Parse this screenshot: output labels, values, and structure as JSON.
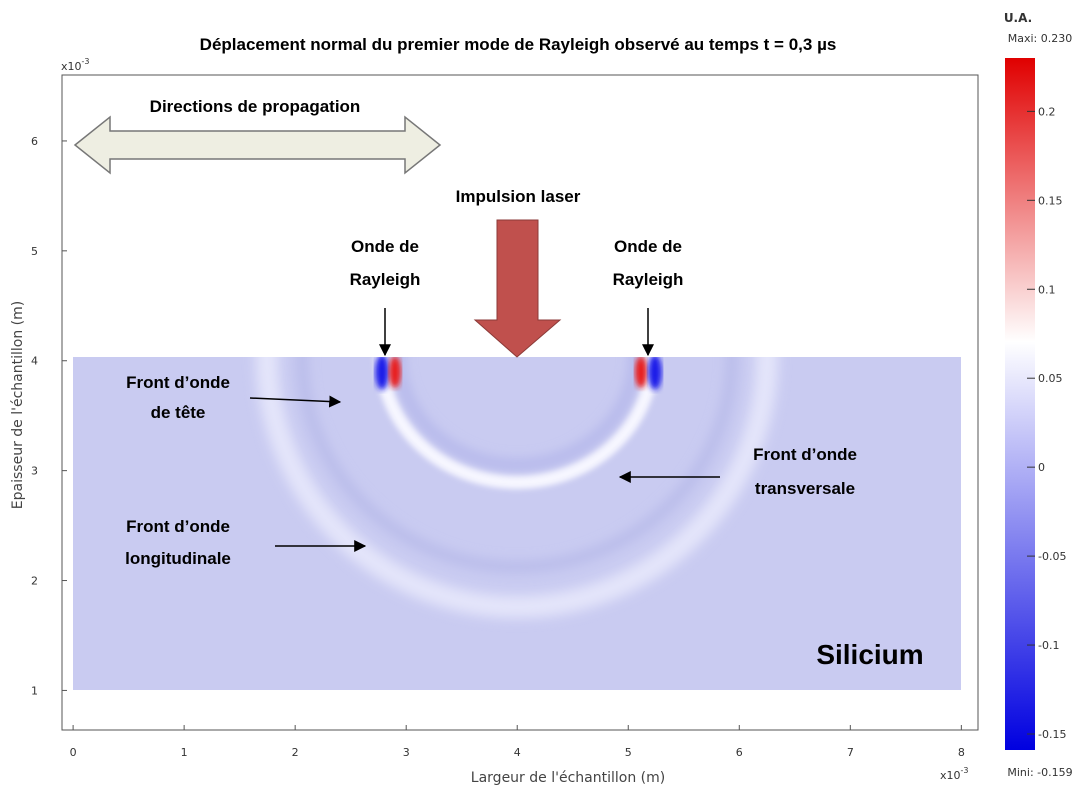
{
  "chart_data": {
    "type": "field",
    "title": "Déplacement normal du premier mode de Rayleigh observé au temps t = 0,3 µs",
    "xlabel": "Largeur de l'échantillon (m)",
    "ylabel": "Epaisseur de l'échantillon (m)",
    "xlim": [
      -0.1,
      8.15
    ],
    "xticks": [
      0,
      1,
      2,
      3,
      4,
      5,
      6,
      7,
      8
    ],
    "ylim": [
      0.64,
      6.6
    ],
    "yticks": [
      1,
      2,
      3,
      4,
      5,
      6
    ],
    "x_multiplier": {
      "base": "x10",
      "exp": "-3"
    },
    "y_multiplier": {
      "base": "x10",
      "exp": "-3"
    },
    "colorbar": {
      "label": "U.A.",
      "max_label": "Maxi: 0.230",
      "min_label": "Mini: -0.159",
      "clim": [
        -0.159,
        0.23
      ],
      "ticks": [
        -0.15,
        -0.1,
        -0.05,
        0,
        0.05,
        0.1,
        0.15,
        0.2
      ]
    },
    "annotations": {
      "propagation": "Directions de propagation",
      "laser": "Impulsion laser",
      "rayleigh_left": [
        "Onde de",
        "Rayleigh"
      ],
      "rayleigh_right": [
        "Onde de",
        "Rayleigh"
      ],
      "head": [
        "Front d’onde",
        "de tête"
      ],
      "transverse": [
        "Front d’onde",
        "transversale"
      ],
      "longitudinal": [
        "Front d’onde",
        "longitudinale"
      ],
      "material": "Silicium"
    }
  }
}
